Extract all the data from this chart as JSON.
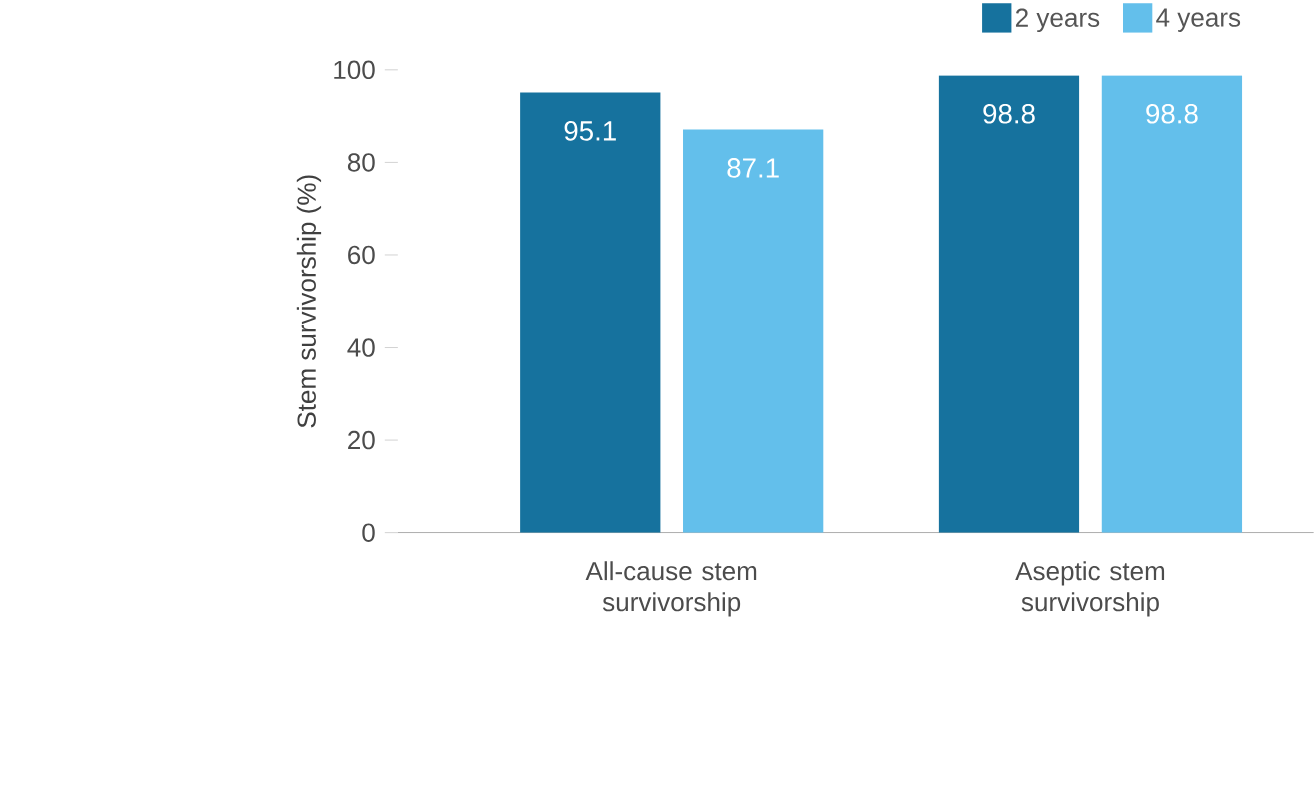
{
  "chart_data": {
    "type": "bar",
    "ylabel": "Stem survivorship (%)",
    "categories": [
      "All-cause stem survivorship",
      "Aseptic stem survivorship"
    ],
    "series": [
      {
        "name": "2 years",
        "color": "#16729e",
        "values": [
          95.1,
          98.8
        ]
      },
      {
        "name": "4 years",
        "color": "#63bfeb",
        "values": [
          87.1,
          98.8
        ]
      }
    ],
    "ylim": [
      0,
      100
    ],
    "yticks": [
      0,
      20,
      40,
      60,
      80,
      100
    ],
    "legend": "top right",
    "data_labels": true
  }
}
